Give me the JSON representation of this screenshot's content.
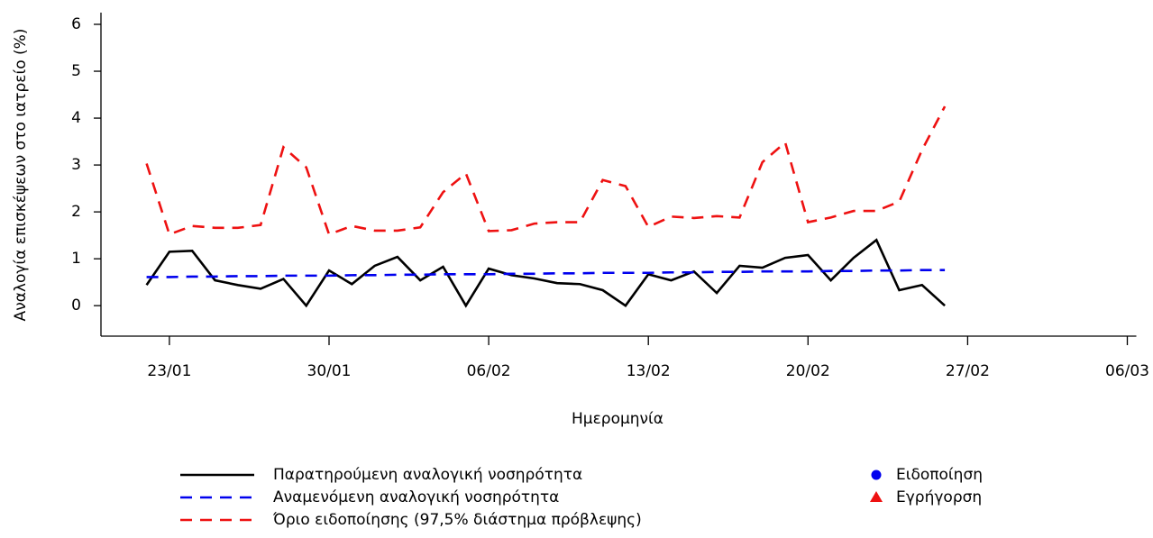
{
  "chart_data": {
    "type": "line",
    "ylabel": "Αναλογία επισκέψεων στο ιατρείο (%)",
    "xlabel": "Ημερομηνία",
    "x": [
      "22/01",
      "23/01",
      "24/01",
      "25/01",
      "26/01",
      "27/01",
      "28/01",
      "29/01",
      "30/01",
      "31/01",
      "01/02",
      "02/02",
      "03/02",
      "04/02",
      "05/02",
      "06/02",
      "07/02",
      "08/02",
      "09/02",
      "10/02",
      "11/02",
      "12/02",
      "13/02",
      "14/02",
      "15/02",
      "16/02",
      "17/02",
      "18/02",
      "19/02",
      "20/02",
      "21/02",
      "22/02",
      "23/02",
      "24/02",
      "25/02",
      "26/02"
    ],
    "series": [
      {
        "name": "Παρατηρούμενη αναλογική νοσηρότητα",
        "color": "#000000",
        "dash": "solid",
        "values": [
          0.44,
          1.15,
          1.17,
          0.54,
          0.44,
          0.36,
          0.57,
          0,
          0.75,
          0.46,
          0.85,
          1.04,
          0.54,
          0.83,
          0,
          0.79,
          0.65,
          0.58,
          0.48,
          0.46,
          0.33,
          0,
          0.67,
          0.54,
          0.73,
          0.27,
          0.85,
          0.81,
          1.02,
          1.08,
          0.54,
          1.02,
          1.4,
          0.33,
          0.44,
          0
        ]
      },
      {
        "name": "Αναμενόμενη αναλογική νοσηρότητα",
        "color": "#0000ee",
        "dash": "dashed",
        "values": [
          0.61,
          0.61,
          0.62,
          0.62,
          0.63,
          0.63,
          0.64,
          0.64,
          0.64,
          0.65,
          0.65,
          0.66,
          0.66,
          0.67,
          0.67,
          0.67,
          0.68,
          0.68,
          0.69,
          0.69,
          0.7,
          0.7,
          0.7,
          0.71,
          0.71,
          0.72,
          0.72,
          0.73,
          0.73,
          0.73,
          0.74,
          0.74,
          0.75,
          0.75,
          0.76,
          0.76
        ]
      },
      {
        "name": "Όριο ειδοποίησης (97,5% διάστημα πρόβλεψης)",
        "color": "#ee1111",
        "dash": "dashed",
        "values": [
          3.03,
          1.52,
          1.7,
          1.66,
          1.66,
          1.72,
          3.38,
          2.95,
          1.52,
          1.7,
          1.6,
          1.6,
          1.67,
          2.42,
          2.82,
          1.59,
          1.61,
          1.75,
          1.78,
          1.78,
          2.68,
          2.55,
          1.68,
          1.9,
          1.87,
          1.91,
          1.88,
          3.06,
          3.48,
          1.78,
          1.88,
          2.02,
          2.02,
          2.22,
          3.32,
          4.25
        ]
      }
    ],
    "markers": [
      {
        "name": "Ειδοποίηση",
        "color": "#0000ee",
        "shape": "circle"
      },
      {
        "name": "Εγρήγορση",
        "color": "#ee1111",
        "shape": "triangle"
      }
    ],
    "xlim": [
      "20/01",
      "07/03"
    ],
    "xticks": [
      "23/01",
      "30/01",
      "06/02",
      "13/02",
      "20/02",
      "27/02",
      "06/03"
    ],
    "ylim": [
      -0.65,
      6.25
    ],
    "yticks": [
      0,
      1,
      2,
      3,
      4,
      5,
      6
    ]
  }
}
